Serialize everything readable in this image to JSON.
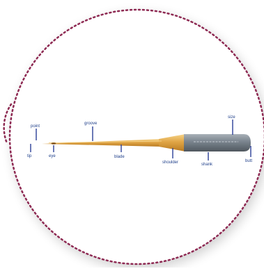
{
  "diagram": {
    "labels": {
      "point": "point",
      "tip": "tip",
      "eye": "eye",
      "groove": "groove",
      "blade": "blade",
      "shoulder": "shoulder",
      "shank": "shank",
      "size": "size",
      "butt": "butt"
    },
    "colors": {
      "dashed_circle": "#8e2a52",
      "label_text": "#1f3f8a",
      "leader_lines": "#2b3f96",
      "blade_gold": "#d89a3a",
      "blade_highlight": "#f3c976",
      "shank_gray": "#7d8791",
      "shank_dark": "#5b636b"
    }
  }
}
